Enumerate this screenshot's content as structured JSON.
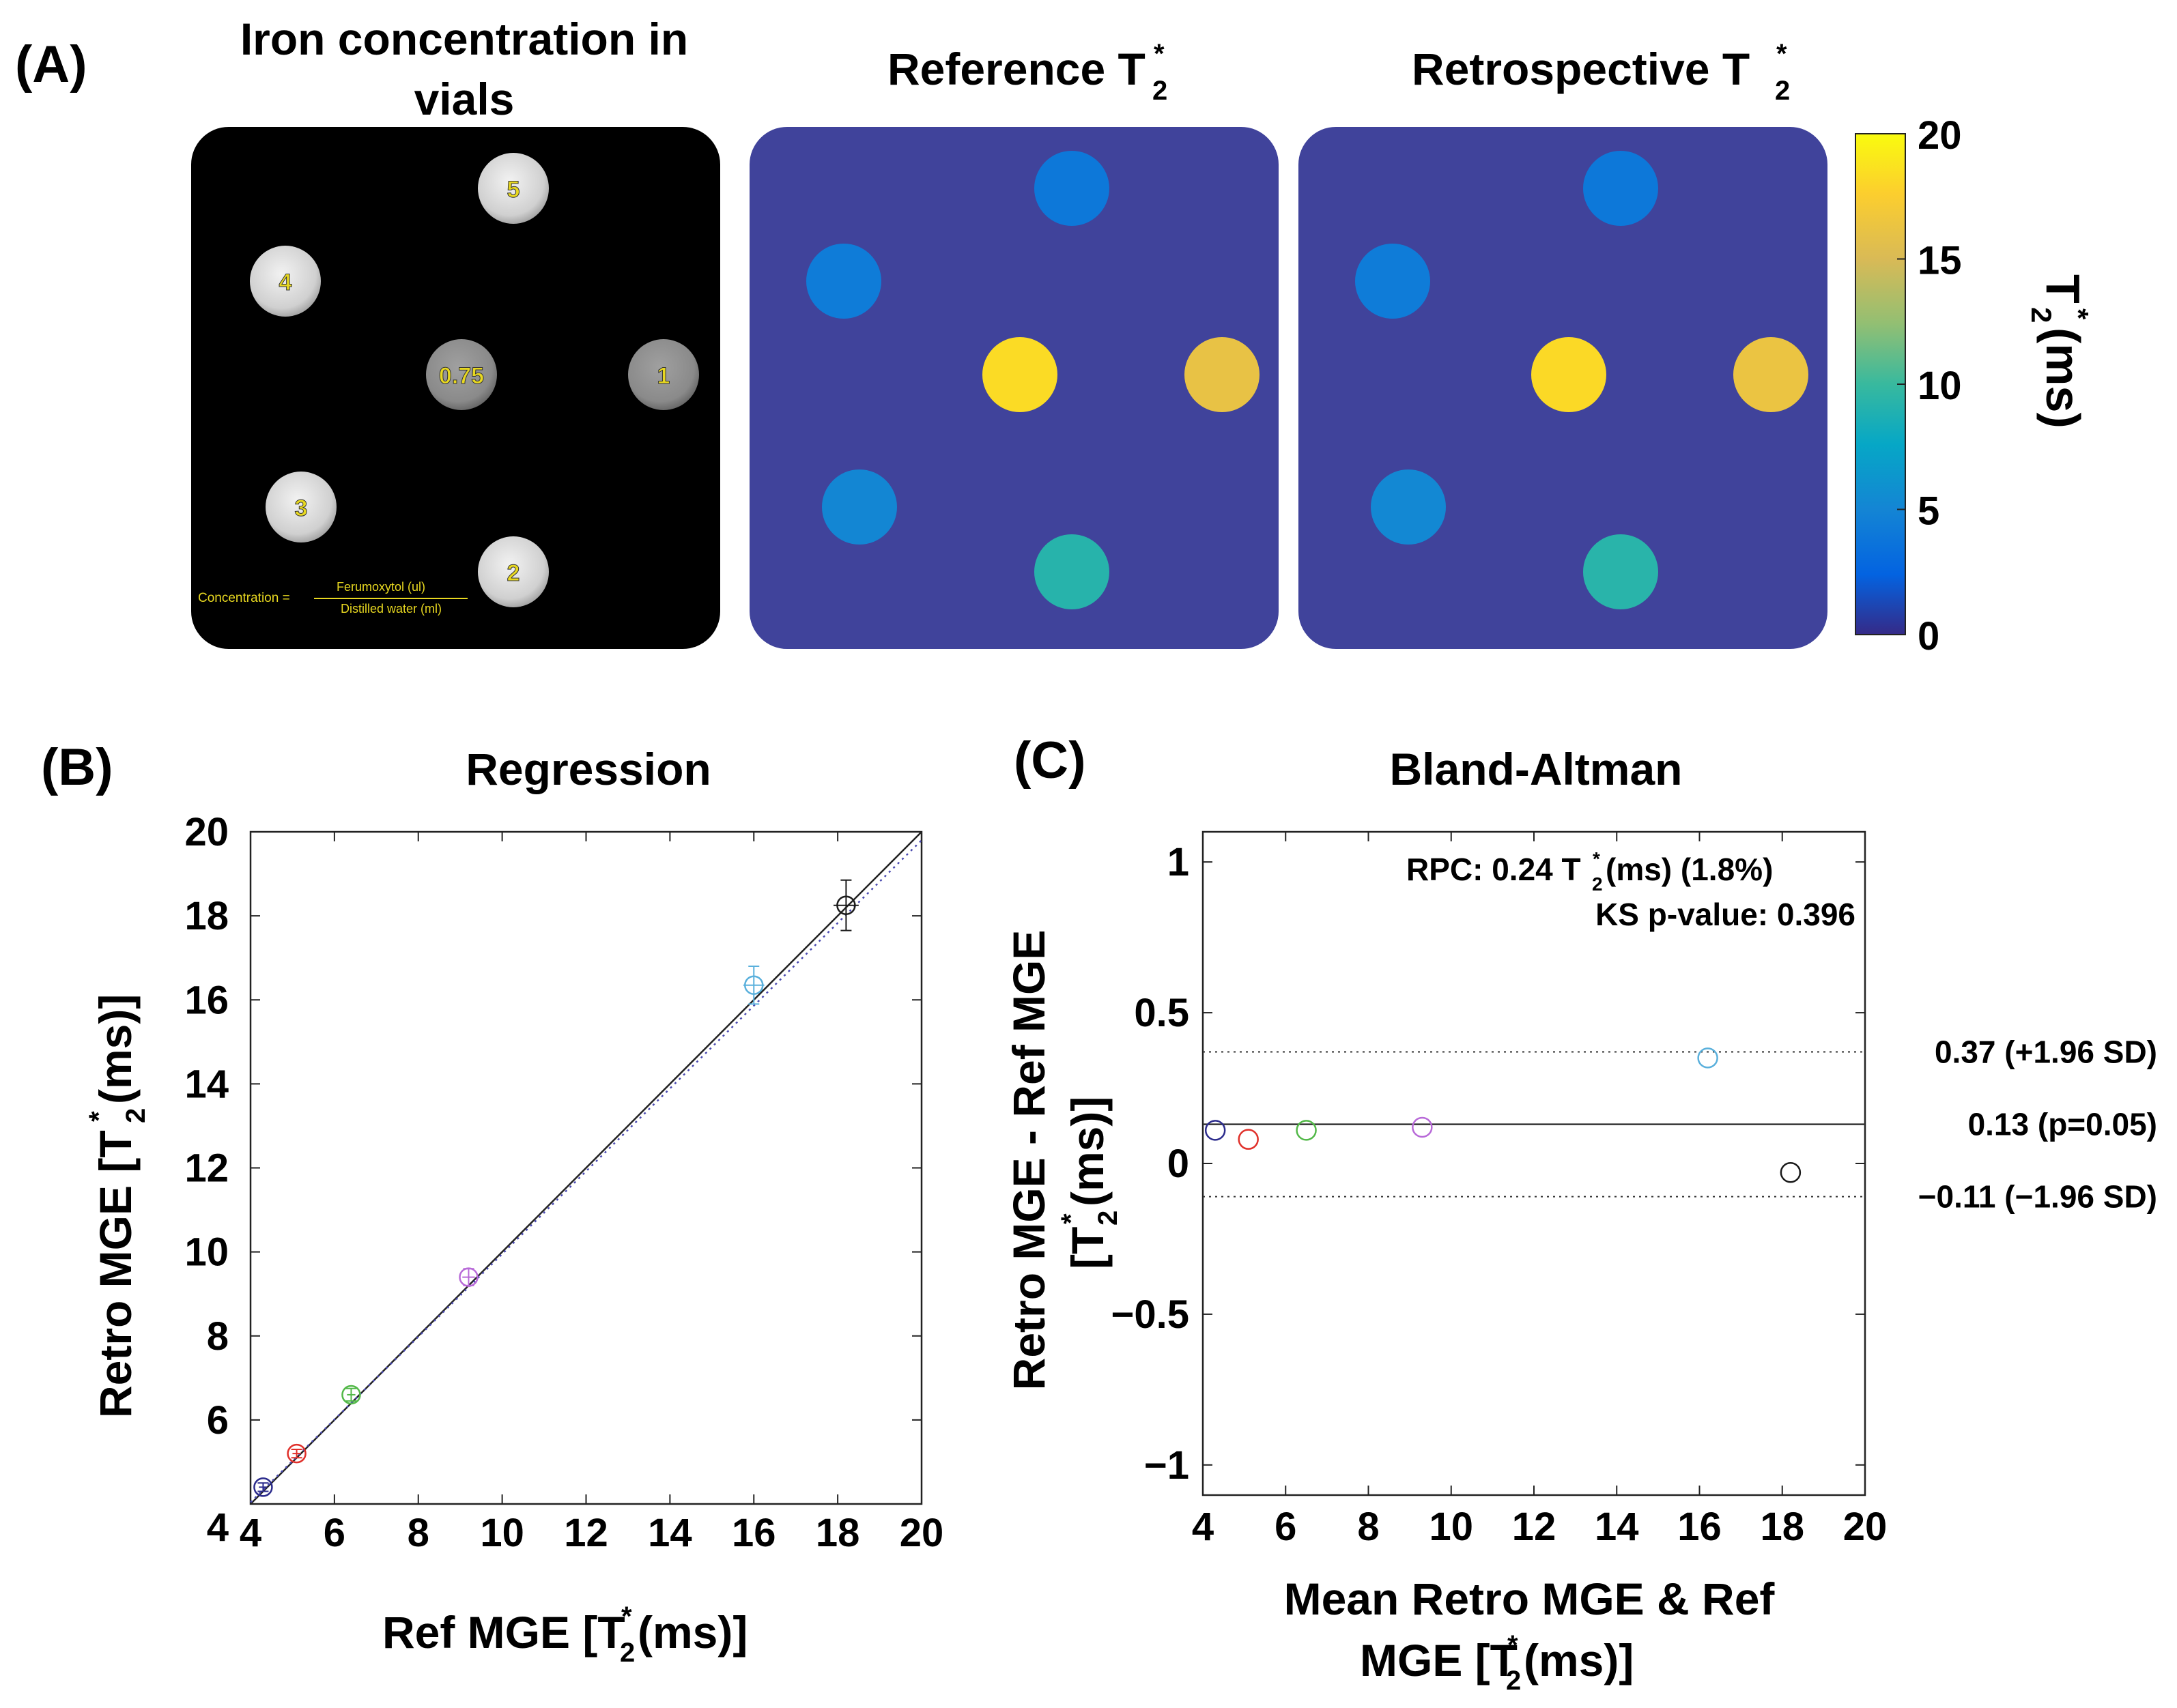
{
  "panel_a": {
    "label": "(A)",
    "titles": {
      "iron_line1": "Iron concentration in",
      "iron_line2": "vials",
      "reference_main": "Reference T",
      "retrospective_main": "Retrospective T",
      "sub": "2",
      "sup": "*"
    },
    "vial_labels": [
      "5",
      "4",
      "0.75",
      "1",
      "3",
      "2"
    ],
    "formula": {
      "prefix": "Concentration =",
      "numerator": "Ferumoxytol (ul)",
      "denominator": "Distilled water (ml)"
    },
    "vial_t2star_reference": [
      4.0,
      4.3,
      18.3,
      16.1,
      5.1,
      9.2
    ],
    "vial_t2star_retrospective": [
      4.0,
      4.3,
      18.2,
      16.3,
      5.2,
      9.3
    ],
    "colorbar": {
      "ticks": [
        "20",
        "15",
        "10",
        "5",
        "0"
      ],
      "range": [
        0,
        20
      ],
      "colormap": "parula",
      "label_main": "T",
      "label_sub": "2",
      "label_sup": "*",
      "label_unit": " (ms)"
    },
    "colors": {
      "background_map": "#40439b",
      "phantom_black": "#000000",
      "vial_gray": "#d6d6d6",
      "vial_label": "#e8d820"
    }
  },
  "chart_data": [
    {
      "type": "scatter",
      "panel_label": "(B)",
      "title": "Regression",
      "xlabel": "Ref MGE [T2*(ms)]",
      "ylabel": "Retro MGE  [T2*(ms)]",
      "xlim": [
        4,
        20
      ],
      "ylim": [
        4,
        20
      ],
      "xticks": [
        "4",
        "6",
        "8",
        "10",
        "12",
        "14",
        "16",
        "18",
        "20"
      ],
      "yticks": [
        "4",
        "6",
        "8",
        "10",
        "12",
        "14",
        "16",
        "18",
        "20"
      ],
      "grid": false,
      "points": [
        {
          "x": 4.3,
          "y": 4.4,
          "color": "#2b2b8c",
          "xerr": 0.1,
          "yerr": 0.1
        },
        {
          "x": 5.1,
          "y": 5.2,
          "color": "#e0302a",
          "xerr": 0.1,
          "yerr": 0.1
        },
        {
          "x": 6.4,
          "y": 6.6,
          "color": "#52b848",
          "xerr": 0.1,
          "yerr": 0.15
        },
        {
          "x": 9.2,
          "y": 9.4,
          "color": "#b86ad8",
          "xerr": 0.15,
          "yerr": 0.2
        },
        {
          "x": 16.0,
          "y": 16.35,
          "color": "#5ab0dc",
          "xerr": 0.25,
          "yerr": 0.45
        },
        {
          "x": 18.2,
          "y": 18.25,
          "color": "#1a1a1a",
          "xerr": 0.3,
          "yerr": 0.6
        }
      ],
      "lines": [
        {
          "kind": "identity",
          "style": "solid"
        },
        {
          "kind": "regression",
          "style": "dotted",
          "slope": 0.985,
          "intercept": 0.1
        }
      ]
    },
    {
      "type": "scatter",
      "panel_label": "(C)",
      "title": "Bland-Altman",
      "xlabel_line1": "Mean Retro MGE & Ref",
      "xlabel_line2": "MGE [T2*(ms)]",
      "ylabel_line1": "Retro MGE - Ref MGE",
      "ylabel_line2": "[T2*(ms)]",
      "xlim": [
        4,
        20
      ],
      "ylim": [
        -1.1,
        1.1
      ],
      "xticks": [
        "4",
        "6",
        "8",
        "10",
        "12",
        "14",
        "16",
        "18",
        "20"
      ],
      "yticks": [
        {
          "value": 1,
          "label": "1"
        },
        {
          "value": 0.5,
          "label": "0.5"
        },
        {
          "value": 0,
          "label": "0"
        },
        {
          "value": -0.5,
          "label": "−0.5"
        },
        {
          "value": -1,
          "label": "−1"
        }
      ],
      "grid": false,
      "points": [
        {
          "x": 4.3,
          "y": 0.11,
          "color": "#2b2b8c"
        },
        {
          "x": 5.1,
          "y": 0.08,
          "color": "#e0302a"
        },
        {
          "x": 6.5,
          "y": 0.11,
          "color": "#52b848"
        },
        {
          "x": 9.3,
          "y": 0.12,
          "color": "#b86ad8"
        },
        {
          "x": 16.2,
          "y": 0.35,
          "color": "#5ab0dc"
        },
        {
          "x": 18.2,
          "y": -0.03,
          "color": "#1a1a1a"
        }
      ],
      "hlines": [
        {
          "y": 0.37,
          "style": "dotted",
          "label": "0.37 (+1.96 SD)"
        },
        {
          "y": 0.13,
          "style": "solid",
          "label": "0.13 (p=0.05)"
        },
        {
          "y": -0.11,
          "style": "dotted",
          "label": "−0.11 (−1.96 SD)"
        }
      ],
      "annotations": {
        "rpc_prefix": "RPC: 0.24 T",
        "rpc_suffix": "(ms) (1.8%)",
        "ks": "KS p-value: 0.396"
      }
    }
  ]
}
